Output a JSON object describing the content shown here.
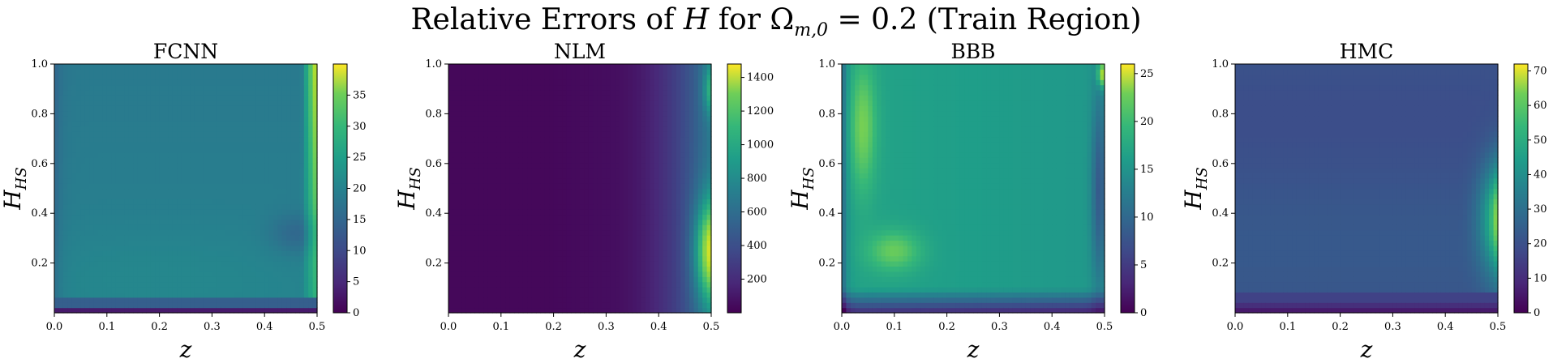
{
  "figure": {
    "title_prefix": "Relative Errors of ",
    "title_var": "H",
    "title_mid": " for Ω",
    "title_sub": "m,0",
    "title_suffix": " = 0.2 (Train Region)"
  },
  "chart_data": [
    {
      "type": "heatmap",
      "title": "FCNN",
      "xlabel": "z",
      "ylabel": "H",
      "ylabel_sub": "HS",
      "xlim": [
        0.0,
        0.5
      ],
      "ylim": [
        0.0,
        1.0
      ],
      "xticks": [
        "0.0",
        "0.1",
        "0.2",
        "0.3",
        "0.4",
        "0.5"
      ],
      "yticks": [
        "0.2",
        "0.4",
        "0.6",
        "0.8",
        "1.0"
      ],
      "colorbar": {
        "min": 0,
        "max": 40,
        "ticks": [
          "0",
          "5",
          "10",
          "15",
          "20",
          "25",
          "30",
          "35"
        ]
      },
      "description": "mostly uniform ~16-18, low (~0-5) near bottom edge H<0.03, bright (~35-40) at right edge z>0.49 upper half"
    },
    {
      "type": "heatmap",
      "title": "NLM",
      "xlabel": "z",
      "ylabel": "H",
      "ylabel_sub": "HS",
      "xlim": [
        0.0,
        0.5
      ],
      "ylim": [
        0.0,
        1.0
      ],
      "xticks": [
        "0.0",
        "0.1",
        "0.2",
        "0.3",
        "0.4",
        "0.5"
      ],
      "yticks": [
        "0.2",
        "0.4",
        "0.6",
        "0.8",
        "1.0"
      ],
      "colorbar": {
        "min": 0,
        "max": 1480,
        "ticks": [
          "200",
          "400",
          "600",
          "800",
          "1000",
          "1200",
          "1400"
        ]
      },
      "description": "low (~0-100) for z<0.25, rising toward right edge; highest (~1400) at z~0.5, H 0.1-0.4"
    },
    {
      "type": "heatmap",
      "title": "BBB",
      "xlabel": "z",
      "ylabel": "H",
      "ylabel_sub": "HS",
      "xlim": [
        0.0,
        0.5
      ],
      "ylim": [
        0.0,
        1.0
      ],
      "xticks": [
        "0.0",
        "0.1",
        "0.2",
        "0.3",
        "0.4",
        "0.5"
      ],
      "yticks": [
        "0.2",
        "0.4",
        "0.6",
        "0.8",
        "1.0"
      ],
      "colorbar": {
        "min": 0,
        "max": 26,
        "ticks": [
          "0",
          "5",
          "10",
          "15",
          "20",
          "25"
        ]
      },
      "description": "~14-16 in bulk, bright (~20-24) band near z~0.02-0.12 and near H~0.2, low near bottom edge and right edge, bright at top-right corner"
    },
    {
      "type": "heatmap",
      "title": "HMC",
      "xlabel": "z",
      "ylabel": "H",
      "ylabel_sub": "HS",
      "xlim": [
        0.0,
        0.5
      ],
      "ylim": [
        0.0,
        1.0
      ],
      "xticks": [
        "0.0",
        "0.1",
        "0.2",
        "0.3",
        "0.4",
        "0.5"
      ],
      "yticks": [
        "0.2",
        "0.4",
        "0.6",
        "0.8",
        "1.0"
      ],
      "colorbar": {
        "min": 0,
        "max": 72,
        "ticks": [
          "0",
          "10",
          "20",
          "30",
          "40",
          "50",
          "60",
          "70"
        ]
      },
      "description": "mostly ~18-22, low near bottom edge, bright (~65-70) at right edge z~0.5, H 0.2-0.55"
    }
  ]
}
